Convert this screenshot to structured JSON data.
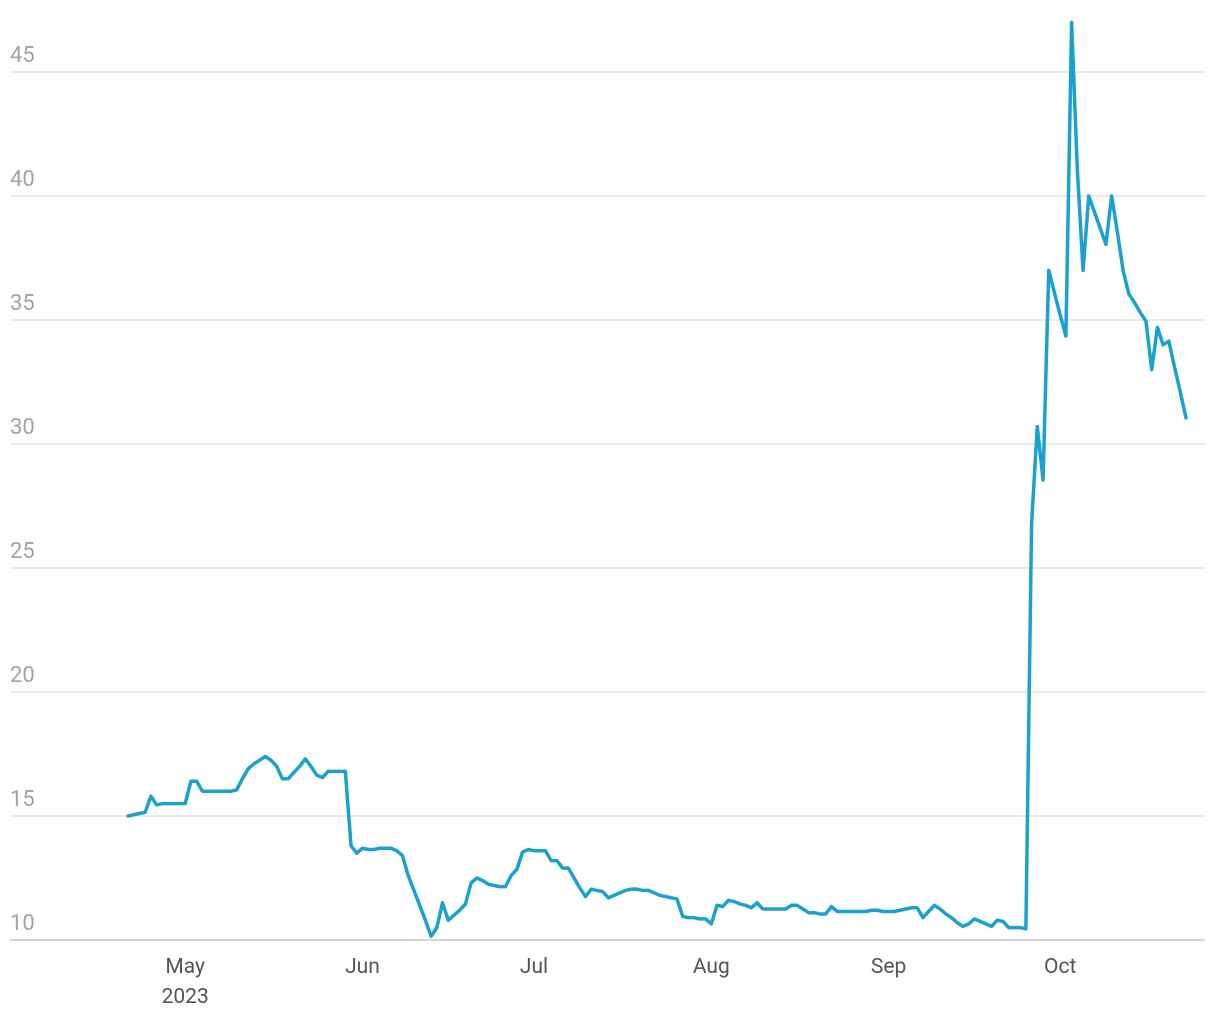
{
  "chart_data": {
    "type": "line",
    "categories": [
      null,
      null,
      null,
      null,
      null,
      null,
      null,
      null,
      null,
      null,
      "May",
      null,
      null,
      null,
      null,
      null,
      null,
      null,
      null,
      null,
      null,
      null,
      null,
      null,
      null,
      null,
      null,
      null,
      null,
      null,
      null,
      null,
      null,
      null,
      null,
      null,
      null,
      null,
      null,
      null,
      null,
      "Jun",
      null,
      null,
      null,
      null,
      null,
      null,
      null,
      null,
      null,
      null,
      null,
      null,
      null,
      null,
      null,
      null,
      null,
      null,
      null,
      null,
      null,
      null,
      null,
      null,
      null,
      null,
      null,
      null,
      null,
      "Jul",
      null,
      null,
      null,
      null,
      null,
      null,
      null,
      null,
      null,
      null,
      null,
      null,
      null,
      null,
      null,
      null,
      null,
      null,
      null,
      null,
      null,
      null,
      null,
      null,
      null,
      null,
      null,
      null,
      null,
      null,
      "Aug",
      null,
      null,
      null,
      null,
      null,
      null,
      null,
      null,
      null,
      null,
      null,
      null,
      null,
      null,
      null,
      null,
      null,
      null,
      null,
      null,
      null,
      null,
      null,
      null,
      null,
      null,
      null,
      null,
      null,
      null,
      "Sep",
      null,
      null,
      null,
      null,
      null,
      null,
      null,
      null,
      null,
      null,
      null,
      null,
      null,
      null,
      null,
      null,
      null,
      null,
      null,
      null,
      null,
      null,
      null,
      null,
      null,
      null,
      null,
      null,
      null,
      "Oct",
      null,
      null,
      null,
      null,
      null,
      null,
      null,
      null,
      null,
      null,
      null,
      null,
      null,
      null,
      null,
      null,
      null,
      null,
      null,
      null,
      null,
      null
    ],
    "year_label": "2023",
    "values": [
      15.0,
      15.05,
      15.1,
      15.15,
      15.8,
      15.45,
      15.5,
      15.5,
      15.5,
      15.5,
      15.5,
      16.4,
      16.4,
      16.0,
      16.0,
      16.0,
      16.0,
      16.0,
      16.0,
      16.05,
      16.5,
      16.9,
      17.1,
      17.25,
      17.4,
      17.25,
      17.0,
      16.5,
      16.5,
      16.75,
      17.0,
      17.3,
      17.0,
      16.65,
      16.55,
      16.8,
      16.8,
      16.8,
      16.8,
      13.8,
      13.5,
      13.7,
      13.65,
      13.65,
      13.7,
      13.7,
      13.7,
      13.6,
      13.4,
      12.6,
      12.0,
      11.4,
      10.8,
      10.15,
      10.5,
      11.5,
      10.8,
      11.0,
      11.2,
      11.45,
      12.3,
      12.5,
      12.4,
      12.25,
      12.2,
      12.15,
      12.15,
      12.6,
      12.85,
      13.55,
      13.65,
      13.6,
      13.6,
      13.6,
      13.2,
      13.2,
      12.9,
      12.9,
      12.5,
      12.1,
      11.75,
      12.05,
      12.0,
      11.95,
      11.7,
      11.8,
      11.9,
      12.0,
      12.05,
      12.05,
      12.0,
      12.0,
      11.9,
      11.8,
      11.75,
      11.7,
      11.65,
      10.95,
      10.9,
      10.9,
      10.85,
      10.85,
      10.65,
      11.4,
      11.35,
      11.6,
      11.55,
      11.45,
      11.4,
      11.3,
      11.5,
      11.25,
      11.25,
      11.25,
      11.25,
      11.25,
      11.4,
      11.4,
      11.25,
      11.1,
      11.1,
      11.05,
      11.05,
      11.35,
      11.15,
      11.15,
      11.15,
      11.15,
      11.15,
      11.15,
      11.2,
      11.2,
      11.15,
      11.15,
      11.15,
      11.2,
      11.25,
      11.3,
      11.3,
      10.9,
      11.15,
      11.4,
      11.25,
      11.05,
      10.9,
      10.7,
      10.55,
      10.65,
      10.85,
      10.75,
      10.65,
      10.55,
      10.8,
      10.75,
      10.5,
      10.5,
      10.5,
      10.45,
      26.8,
      30.7,
      28.55,
      37.0,
      36.1,
      35.2,
      34.35,
      47.0,
      41.05,
      37.0,
      40.0,
      39.35,
      38.7,
      38.05,
      40.0,
      38.55,
      37.0,
      36.05,
      35.7,
      35.3,
      34.95,
      33.0,
      34.7,
      34.0,
      34.15,
      33.1,
      32.1,
      31.05
    ],
    "color": "#1ba1d0",
    "ylim": [
      10,
      47
    ],
    "yticks": [
      10,
      15,
      20,
      25,
      30,
      35,
      40,
      45
    ],
    "grid": true
  }
}
